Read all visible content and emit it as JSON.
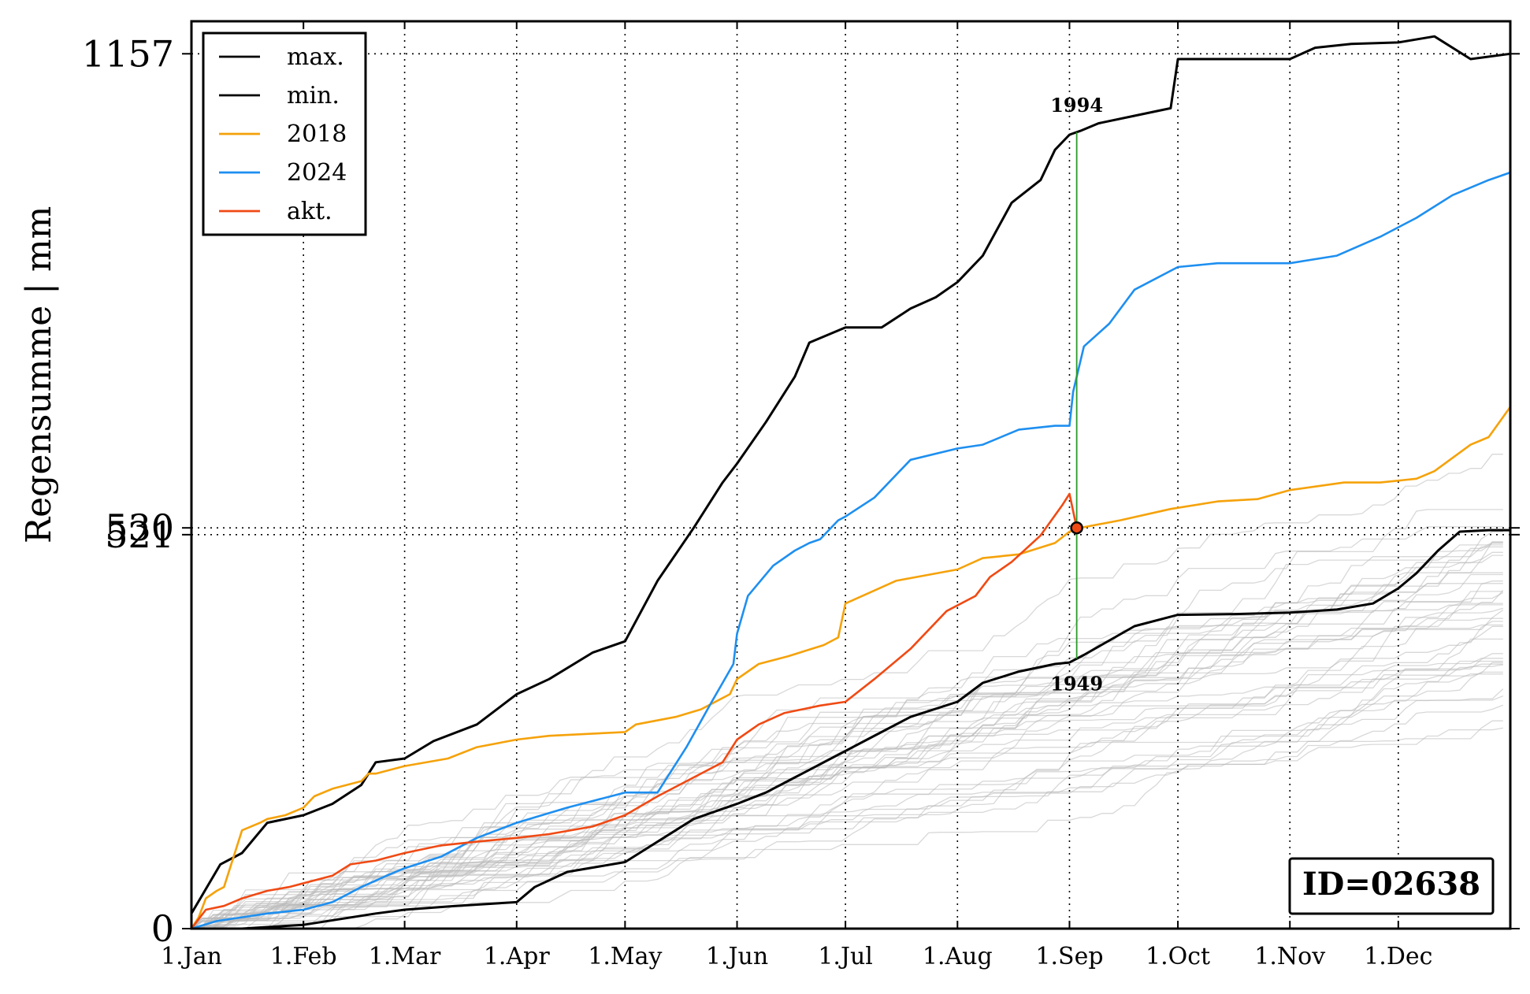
{
  "chart_data": {
    "type": "line",
    "title": "",
    "xlabel": "",
    "ylabel": "Regensumme | mm",
    "x_ticks": [
      "1.Jan",
      "1.Feb",
      "1.Mar",
      "1.Apr",
      "1.May",
      "1.Jun",
      "1.Jul",
      "1.Aug",
      "1.Sep",
      "1.Oct",
      "1.Nov",
      "1.Dec"
    ],
    "x_tick_days": [
      1,
      32,
      60,
      91,
      121,
      152,
      182,
      213,
      244,
      274,
      305,
      335
    ],
    "xlim": [
      1,
      366
    ],
    "ylim": [
      0,
      1200
    ],
    "y_ticks": [
      0,
      521,
      530,
      1157
    ],
    "y_tick_labels": [
      "0",
      "521",
      "530",
      "1157"
    ],
    "grid": "dotted",
    "legend_position": "top-left",
    "current_day": 246,
    "current_value": 530,
    "annotations": {
      "max_year": "1994",
      "min_year": "1949"
    },
    "id_label": "ID=02638",
    "colors": {
      "max": "#000000",
      "min": "#000000",
      "2018": "#f5a20a",
      "2024": "#1e8ff0",
      "akt": "#f04a14",
      "grey": "#b8b8b8",
      "marker": "#f04a14",
      "vline": "#2a9a2a"
    },
    "series": [
      {
        "name": "max.",
        "x": [
          1,
          9,
          15,
          22,
          32,
          40,
          48,
          52,
          60,
          68,
          80,
          91,
          100,
          112,
          121,
          130,
          140,
          148,
          152,
          160,
          168,
          172,
          182,
          192,
          200,
          207,
          213,
          220,
          228,
          236,
          240,
          244,
          247,
          252,
          262,
          272,
          274,
          290,
          305,
          312,
          322,
          335,
          345,
          355,
          366
        ],
        "y": [
          20,
          85,
          100,
          140,
          150,
          165,
          190,
          220,
          225,
          248,
          270,
          310,
          330,
          365,
          380,
          460,
          530,
          590,
          615,
          670,
          730,
          775,
          795,
          795,
          820,
          835,
          855,
          890,
          960,
          990,
          1030,
          1050,
          1055,
          1065,
          1075,
          1085,
          1150,
          1150,
          1150,
          1165,
          1170,
          1172,
          1180,
          1150,
          1157
        ]
      },
      {
        "name": "min.",
        "x": [
          1,
          15,
          32,
          52,
          60,
          74,
          91,
          96,
          105,
          121,
          125,
          135,
          140,
          152,
          160,
          168,
          182,
          188,
          200,
          213,
          220,
          230,
          240,
          244,
          248,
          262,
          274,
          290,
          305,
          318,
          328,
          335,
          340,
          346,
          352,
          360,
          366
        ],
        "y": [
          0,
          0,
          5,
          20,
          25,
          30,
          35,
          55,
          75,
          88,
          100,
          130,
          145,
          165,
          180,
          200,
          235,
          250,
          280,
          300,
          325,
          340,
          350,
          352,
          362,
          400,
          415,
          416,
          418,
          422,
          430,
          450,
          470,
          500,
          525,
          527,
          527
        ]
      },
      {
        "name": "2018",
        "x": [
          1,
          3,
          5,
          8,
          10,
          15,
          20,
          22,
          27,
          32,
          35,
          40,
          48,
          50,
          52,
          60,
          72,
          80,
          91,
          100,
          121,
          124,
          135,
          142,
          150,
          152,
          158,
          166,
          176,
          180,
          182,
          196,
          213,
          220,
          230,
          240,
          244,
          247,
          258,
          272,
          285,
          296,
          305,
          320,
          330,
          340,
          345,
          355,
          360,
          366
        ],
        "y": [
          0,
          15,
          40,
          50,
          55,
          130,
          140,
          145,
          150,
          160,
          175,
          185,
          195,
          205,
          205,
          215,
          225,
          240,
          250,
          255,
          260,
          270,
          280,
          290,
          310,
          330,
          350,
          360,
          375,
          385,
          430,
          460,
          475,
          490,
          495,
          510,
          525,
          530,
          540,
          555,
          565,
          568,
          580,
          590,
          590,
          595,
          605,
          640,
          650,
          690
        ]
      },
      {
        "name": "2024",
        "x": [
          1,
          8,
          15,
          22,
          32,
          40,
          48,
          55,
          60,
          70,
          80,
          91,
          105,
          121,
          130,
          138,
          145,
          148,
          151,
          152,
          155,
          162,
          168,
          172,
          175,
          180,
          182,
          190,
          200,
          213,
          220,
          230,
          240,
          244,
          245,
          248,
          255,
          262,
          274,
          285,
          305,
          318,
          330,
          340,
          350,
          360,
          366
        ],
        "y": [
          0,
          10,
          15,
          20,
          25,
          35,
          55,
          70,
          80,
          95,
          120,
          140,
          160,
          180,
          180,
          240,
          300,
          325,
          350,
          390,
          440,
          480,
          500,
          510,
          515,
          540,
          545,
          570,
          620,
          635,
          640,
          660,
          665,
          665,
          710,
          770,
          800,
          845,
          875,
          880,
          880,
          890,
          915,
          940,
          970,
          990,
          1000
        ]
      },
      {
        "name": "akt.",
        "x": [
          1,
          5,
          10,
          15,
          22,
          28,
          32,
          40,
          45,
          52,
          60,
          70,
          80,
          91,
          100,
          112,
          121,
          130,
          140,
          148,
          152,
          158,
          165,
          170,
          175,
          182,
          190,
          200,
          210,
          218,
          222,
          228,
          236,
          242,
          244,
          246
        ],
        "y": [
          0,
          25,
          30,
          40,
          50,
          55,
          60,
          70,
          85,
          90,
          100,
          110,
          115,
          120,
          125,
          135,
          150,
          175,
          200,
          220,
          250,
          270,
          285,
          290,
          295,
          300,
          330,
          370,
          420,
          440,
          465,
          485,
          520,
          560,
          575,
          530
        ]
      }
    ]
  }
}
